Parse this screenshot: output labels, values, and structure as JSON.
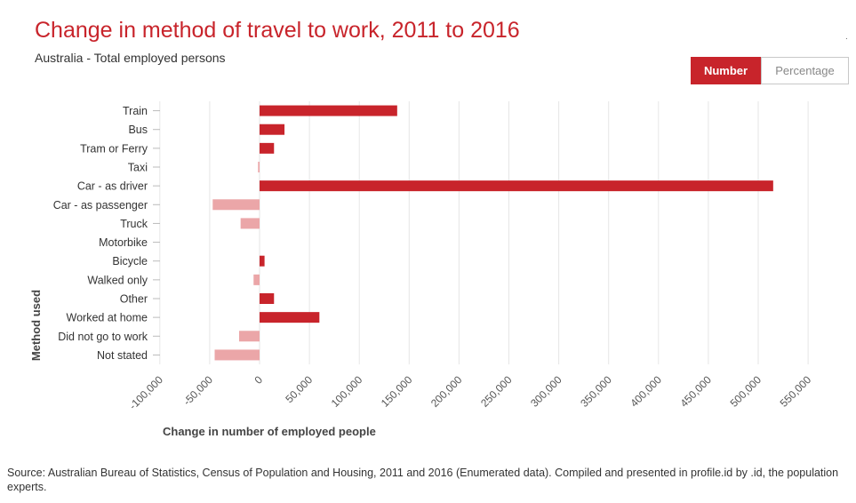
{
  "header": {
    "title": "Change in method of travel to work, 2011 to 2016",
    "subtitle": "Australia - Total employed persons",
    "corner_mark": "."
  },
  "toggle": {
    "number_label": "Number",
    "percentage_label": "Percentage",
    "selected": "Number"
  },
  "source": "Source: Australian Bureau of Statistics, Census of Population and Housing, 2011 and 2016 (Enumerated data). Compiled and presented in profile.id by .id, the population experts.",
  "colors": {
    "positive": "#c8242b",
    "negative": "#eba6a8",
    "title": "#c8242b",
    "grid": "#e6e6e6"
  },
  "chart_data": {
    "type": "bar",
    "orientation": "horizontal",
    "ylabel": "Method used",
    "xlabel": "Change in number of employed people",
    "xlim": [
      -100000,
      550000
    ],
    "xticks": [
      -100000,
      -50000,
      0,
      50000,
      100000,
      150000,
      200000,
      250000,
      300000,
      350000,
      400000,
      450000,
      500000,
      550000
    ],
    "xtick_labels": [
      "-100,000",
      "-50,000",
      "0",
      "50,000",
      "100,000",
      "150,000",
      "200,000",
      "250,000",
      "300,000",
      "350,000",
      "400,000",
      "450,000",
      "500,000",
      "550,000"
    ],
    "grid": true,
    "categories": [
      "Train",
      "Bus",
      "Tram or Ferry",
      "Taxi",
      "Car - as driver",
      "Car - as passenger",
      "Truck",
      "Motorbike",
      "Bicycle",
      "Walked only",
      "Other",
      "Worked at home",
      "Did not go to work",
      "Not stated"
    ],
    "values": [
      138000,
      25000,
      14500,
      -1500,
      515000,
      -47000,
      -19000,
      0,
      5000,
      -6000,
      14500,
      60000,
      -20500,
      -45000
    ]
  }
}
